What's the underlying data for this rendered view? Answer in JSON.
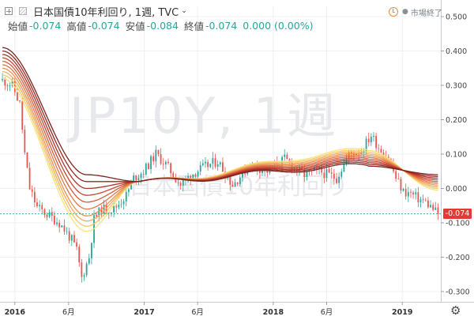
{
  "header": {
    "symbol_label": "日本国債10年利回り, 1週, TVC",
    "labels": {
      "open": "始値",
      "high": "高値",
      "low": "安値",
      "close": "終値"
    },
    "values": {
      "open": "-0.074",
      "high": "-0.074",
      "low": "-0.084",
      "close": "-0.074",
      "change": "0.000 (0.00%)"
    },
    "status": "市場終了"
  },
  "watermark": {
    "line1": "JP10Y, 1週",
    "line2": "日本国債10年利回り"
  },
  "colors": {
    "up": "#26a69a",
    "down": "#ef5350",
    "ribbon": [
      "#f7e37a",
      "#f6c86b",
      "#f2ad5e",
      "#ec9152",
      "#e27646",
      "#d55d3c",
      "#c44834",
      "#ad362b",
      "#962a24",
      "#7f231e"
    ],
    "price_line": "#26a69a",
    "price_tag": "#e53935"
  },
  "price_tag_label": "-0.074",
  "chart_data": {
    "type": "candlestick",
    "timeframe": "1週",
    "y_axis": {
      "ticks": [
        0.5,
        0.4,
        0.3,
        0.2,
        0.1,
        0.0,
        -0.1,
        -0.2,
        -0.3
      ],
      "tick_labels": [
        "0.500",
        "0.400",
        "0.300",
        "0.200",
        "0.100",
        "0.000",
        "-0.100",
        "-0.200",
        "-0.300"
      ],
      "range": [
        -0.33,
        0.53
      ],
      "position": "right"
    },
    "x_axis": {
      "range": [
        "2015-11-20",
        "2019-04-20"
      ],
      "ticks": [
        {
          "date": "2016-01-01",
          "label": "2016",
          "bold": true
        },
        {
          "date": "2016-06-01",
          "label": "6月",
          "bold": false
        },
        {
          "date": "2017-01-01",
          "label": "2017",
          "bold": true
        },
        {
          "date": "2017-06-01",
          "label": "6月",
          "bold": false
        },
        {
          "date": "2018-01-01",
          "label": "2018",
          "bold": true
        },
        {
          "date": "2018-06-01",
          "label": "6月",
          "bold": false
        },
        {
          "date": "2019-01-01",
          "label": "2019",
          "bold": true
        }
      ]
    },
    "close_path": [
      [
        "2015-11-27",
        0.315
      ],
      [
        "2015-12-25",
        0.3
      ],
      [
        "2016-01-15",
        0.245
      ],
      [
        "2016-01-29",
        0.1
      ],
      [
        "2016-02-12",
        0.0
      ],
      [
        "2016-03-04",
        -0.055
      ],
      [
        "2016-04-01",
        -0.075
      ],
      [
        "2016-05-06",
        -0.1
      ],
      [
        "2016-06-10",
        -0.15
      ],
      [
        "2016-06-24",
        -0.18
      ],
      [
        "2016-07-08",
        -0.26
      ],
      [
        "2016-07-29",
        -0.2
      ],
      [
        "2016-08-12",
        -0.09
      ],
      [
        "2016-09-02",
        -0.06
      ],
      [
        "2016-10-07",
        -0.06
      ],
      [
        "2016-11-11",
        -0.02
      ],
      [
        "2016-12-02",
        0.03
      ],
      [
        "2016-12-30",
        0.05
      ],
      [
        "2017-02-03",
        0.1
      ],
      [
        "2017-03-03",
        0.07
      ],
      [
        "2017-04-14",
        0.01
      ],
      [
        "2017-05-12",
        0.04
      ],
      [
        "2017-06-16",
        0.06
      ],
      [
        "2017-07-28",
        0.08
      ],
      [
        "2017-09-08",
        0.01
      ],
      [
        "2017-10-27",
        0.07
      ],
      [
        "2017-12-15",
        0.05
      ],
      [
        "2018-02-02",
        0.085
      ],
      [
        "2018-03-30",
        0.04
      ],
      [
        "2018-05-11",
        0.05
      ],
      [
        "2018-06-29",
        0.03
      ],
      [
        "2018-08-03",
        0.1
      ],
      [
        "2018-09-07",
        0.11
      ],
      [
        "2018-10-05",
        0.155
      ],
      [
        "2018-10-26",
        0.12
      ],
      [
        "2018-11-23",
        0.09
      ],
      [
        "2018-12-14",
        0.03
      ],
      [
        "2019-01-04",
        -0.01
      ],
      [
        "2019-01-25",
        -0.015
      ],
      [
        "2019-02-15",
        -0.03
      ],
      [
        "2019-03-08",
        -0.04
      ],
      [
        "2019-03-29",
        -0.06
      ],
      [
        "2019-04-12",
        -0.074
      ]
    ],
    "ribbon_values_at": [
      {
        "date": "2015-11-27",
        "values": [
          0.32,
          0.33,
          0.34,
          0.35,
          0.36,
          0.37,
          0.38,
          0.39,
          0.4,
          0.41
        ]
      },
      {
        "date": "2016-07-22",
        "values": [
          -0.125,
          -0.11,
          -0.095,
          -0.08,
          -0.06,
          -0.04,
          -0.02,
          0.0,
          0.02,
          0.04
        ]
      },
      {
        "date": "2016-12-16",
        "values": [
          0.02,
          0.02,
          0.02,
          0.02,
          0.02,
          0.02,
          0.02,
          0.02,
          0.02,
          0.02
        ]
      },
      {
        "date": "2018-09-28",
        "values": [
          0.11,
          0.105,
          0.1,
          0.095,
          0.09,
          0.085,
          0.08,
          0.075,
          0.07,
          0.065
        ]
      },
      {
        "date": "2019-04-12",
        "values": [
          -0.005,
          0.0,
          0.005,
          0.01,
          0.015,
          0.02,
          0.025,
          0.03,
          0.035,
          0.04
        ]
      }
    ],
    "last_value": -0.074,
    "grid": true
  }
}
